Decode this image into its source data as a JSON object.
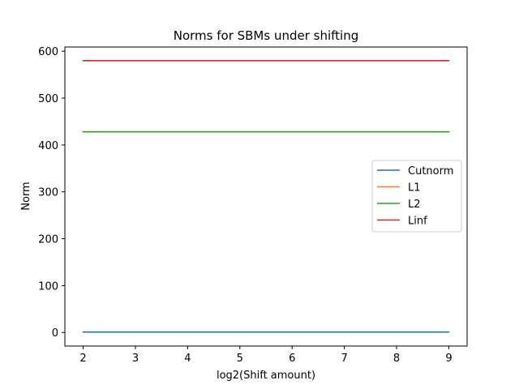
{
  "chart_data": {
    "type": "line",
    "title": "Norms for SBMs under shifting",
    "xlabel": "log2(Shift amount)",
    "ylabel": "Norm",
    "x": [
      2,
      3,
      4,
      5,
      6,
      7,
      8,
      9
    ],
    "xlim": [
      1.65,
      9.35
    ],
    "ylim": [
      -29,
      609
    ],
    "xticks": [
      "2",
      "3",
      "4",
      "5",
      "6",
      "7",
      "8",
      "9"
    ],
    "yticks": [
      "0",
      "100",
      "200",
      "300",
      "400",
      "500",
      "600"
    ],
    "grid": false,
    "legend_position": "center-right",
    "series": [
      {
        "name": "Cutnorm",
        "color": "#1f77b4",
        "values": [
          1,
          1,
          1,
          1,
          1,
          1,
          1,
          1
        ]
      },
      {
        "name": "L1",
        "color": "#ff7f0e",
        "values": [
          428,
          428,
          428,
          428,
          428,
          428,
          428,
          428
        ]
      },
      {
        "name": "L2",
        "color": "#2ca02c",
        "values": [
          428,
          428,
          428,
          428,
          428,
          428,
          428,
          428
        ]
      },
      {
        "name": "Linf",
        "color": "#d62728",
        "values": [
          580,
          580,
          580,
          580,
          580,
          580,
          580,
          580
        ]
      }
    ]
  }
}
